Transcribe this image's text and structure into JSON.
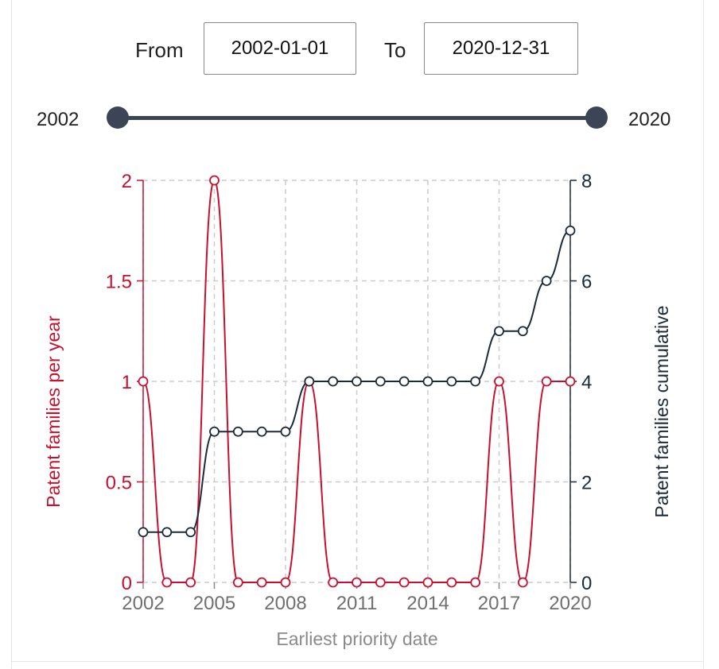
{
  "filter": {
    "from_label": "From",
    "from_value": "2002-01-01",
    "to_label": "To",
    "to_value": "2020-12-31"
  },
  "slider": {
    "min_label": "2002",
    "max_label": "2020"
  },
  "colors": {
    "per_year": "#c8102e",
    "cumulative": "#1c2b39",
    "grid": "#cccccc",
    "slider": "#3b4556",
    "axis_title": "#8a8a8a"
  },
  "chart_data": {
    "type": "line",
    "title": "",
    "xlabel": "Earliest priority date",
    "ylabel": "Patent families per year",
    "y2label": "Patent families cumulative",
    "x": [
      2002,
      2003,
      2004,
      2005,
      2006,
      2007,
      2008,
      2009,
      2010,
      2011,
      2012,
      2013,
      2014,
      2015,
      2016,
      2017,
      2018,
      2019,
      2020
    ],
    "xticks": [
      "2002",
      "2005",
      "2008",
      "2011",
      "2014",
      "2017",
      "2020"
    ],
    "xtick_values": [
      2002,
      2005,
      2008,
      2011,
      2014,
      2017,
      2020
    ],
    "xlim": [
      2002,
      2020
    ],
    "ylim": [
      0,
      2
    ],
    "yticks": [
      "0",
      "0.5",
      "1",
      "1.5",
      "2"
    ],
    "ytick_values": [
      0,
      0.5,
      1,
      1.5,
      2
    ],
    "y2lim": [
      0,
      8
    ],
    "y2ticks": [
      "0",
      "2",
      "4",
      "6",
      "8"
    ],
    "y2tick_values": [
      0,
      2,
      4,
      6,
      8
    ],
    "grid": true,
    "series": [
      {
        "name": "Patent families per year",
        "axis": "left",
        "color": "#c8102e",
        "values": [
          1,
          0,
          0,
          2,
          0,
          0,
          0,
          1,
          0,
          0,
          0,
          0,
          0,
          0,
          0,
          1,
          0,
          1,
          1
        ]
      },
      {
        "name": "Patent families cumulative",
        "axis": "right",
        "color": "#1c2b39",
        "values": [
          1,
          1,
          1,
          3,
          3,
          3,
          3,
          4,
          4,
          4,
          4,
          4,
          4,
          4,
          4,
          5,
          5,
          6,
          7
        ]
      }
    ]
  }
}
